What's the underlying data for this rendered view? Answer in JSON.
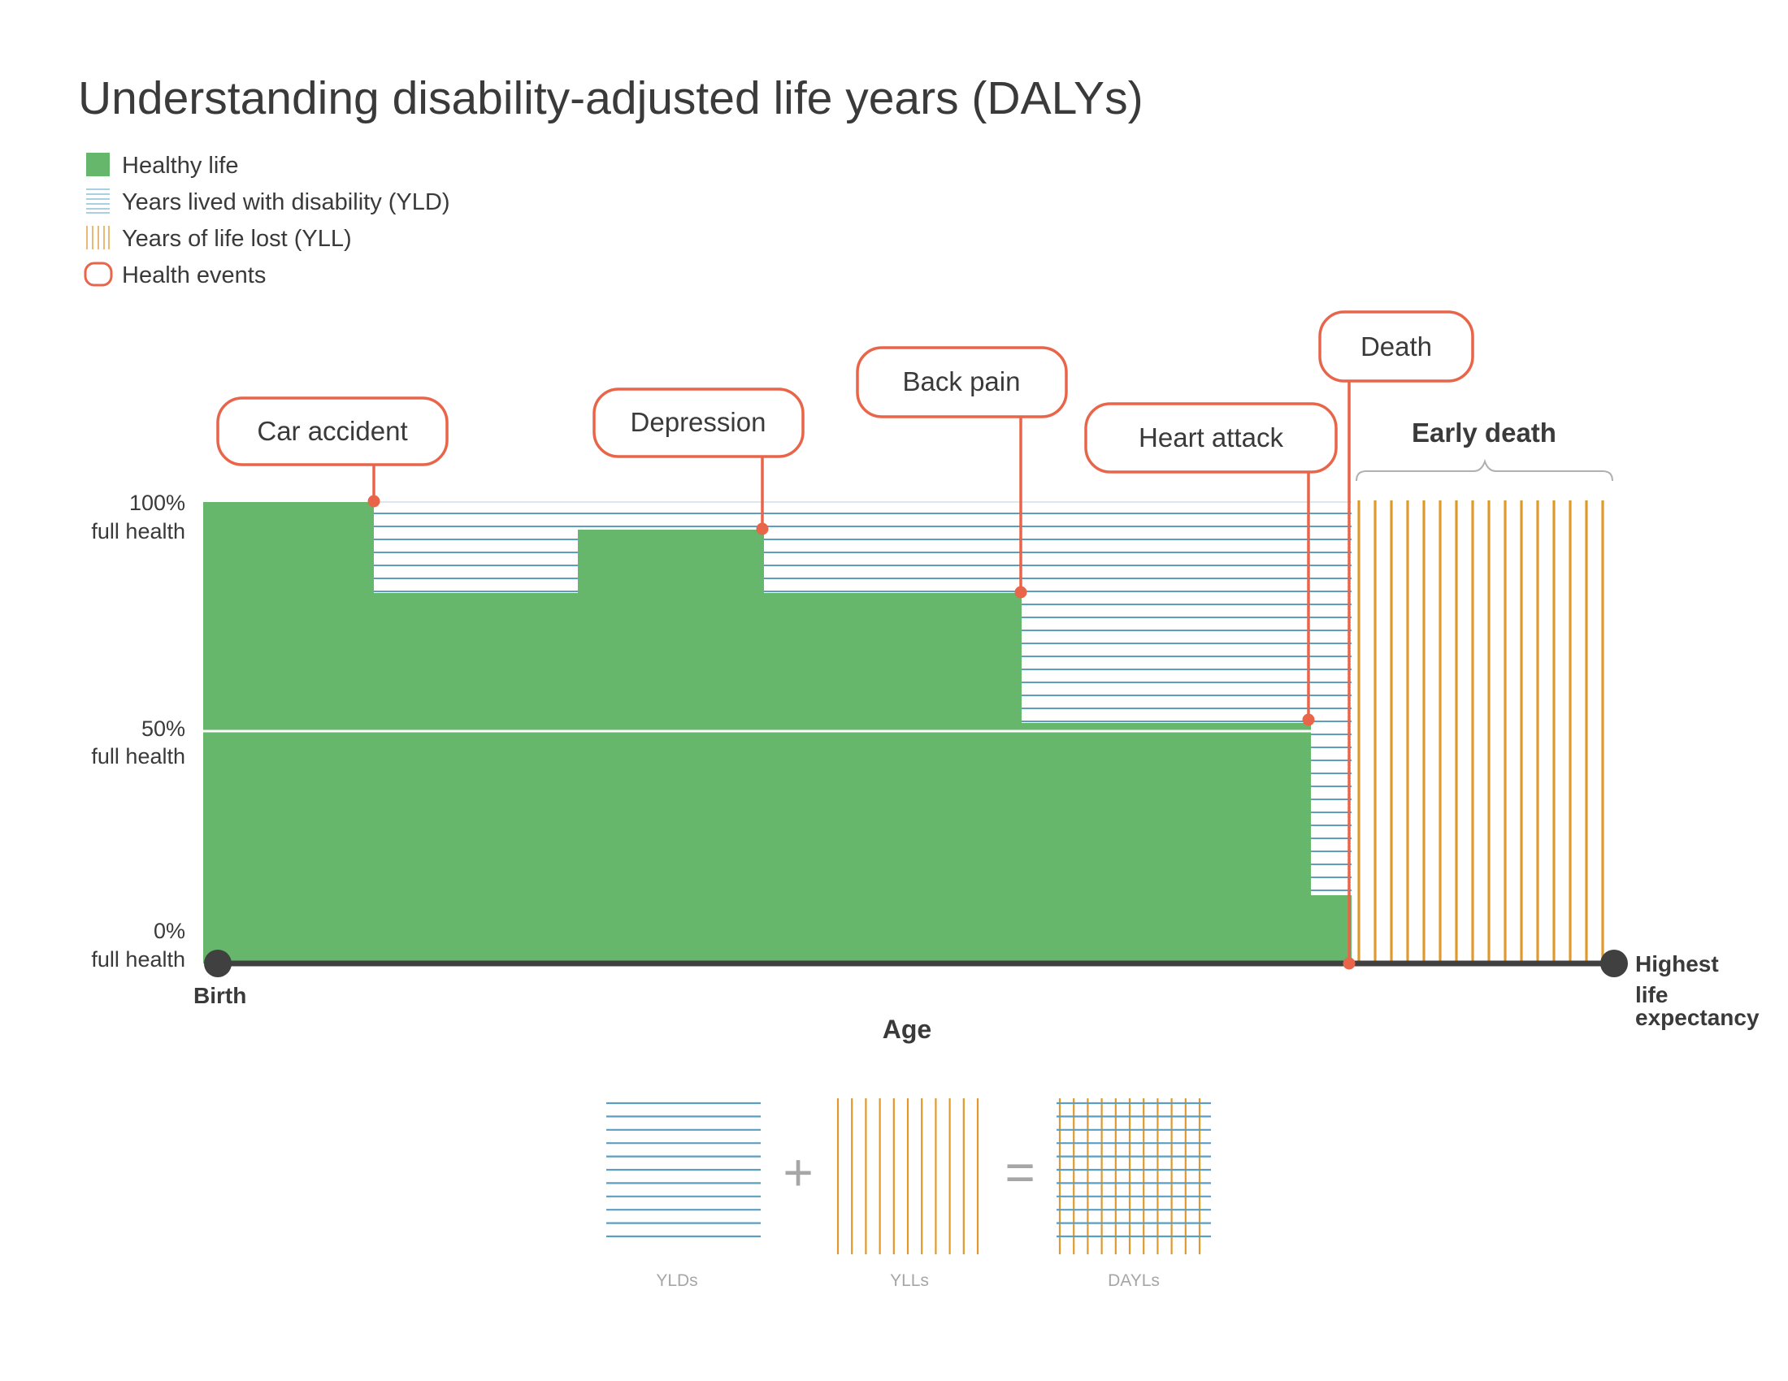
{
  "title": "Understanding disability-adjusted life years (DALYs)",
  "legend": [
    {
      "label": "Healthy life",
      "icon": "green-square"
    },
    {
      "label": "Years lived with disability (YLD)",
      "icon": "blue-horizontal-lines"
    },
    {
      "label": "Years of life lost (YLL)",
      "icon": "orange-vertical-lines"
    },
    {
      "label": "Health events",
      "icon": "red-rounded-box"
    }
  ],
  "y_labels": [
    {
      "pct": "100%",
      "sub": "full health",
      "level": 100
    },
    {
      "pct": "50%",
      "sub": "full health",
      "level": 50
    },
    {
      "pct": "0%",
      "sub": "full health",
      "level": 0
    }
  ],
  "axis": {
    "start_label": "Birth",
    "end_label_lines": [
      "Highest",
      "life",
      "expectancy"
    ],
    "x_label": "Age"
  },
  "events": [
    {
      "label": "Car accident",
      "health_after": 80
    },
    {
      "label": "Depression",
      "health_after": 80
    },
    {
      "label": "Back pain",
      "health_after": 52
    },
    {
      "label": "Heart attack",
      "health_after": 14
    },
    {
      "label": "Death",
      "health_after": 0
    }
  ],
  "health_levels": [
    100,
    80,
    94,
    80,
    52,
    14
  ],
  "early_death_label": "Early death",
  "equation": {
    "plus": "+",
    "equals": "=",
    "yld": "YLDs",
    "yll": "YLLs",
    "daly": "DAYLs"
  },
  "colors": {
    "healthy": "#66b66b",
    "yld": "#5b9ec0",
    "yll": "#e09a2c",
    "event": "#e8654a",
    "axis": "#404040",
    "text": "#3a3a3a"
  }
}
